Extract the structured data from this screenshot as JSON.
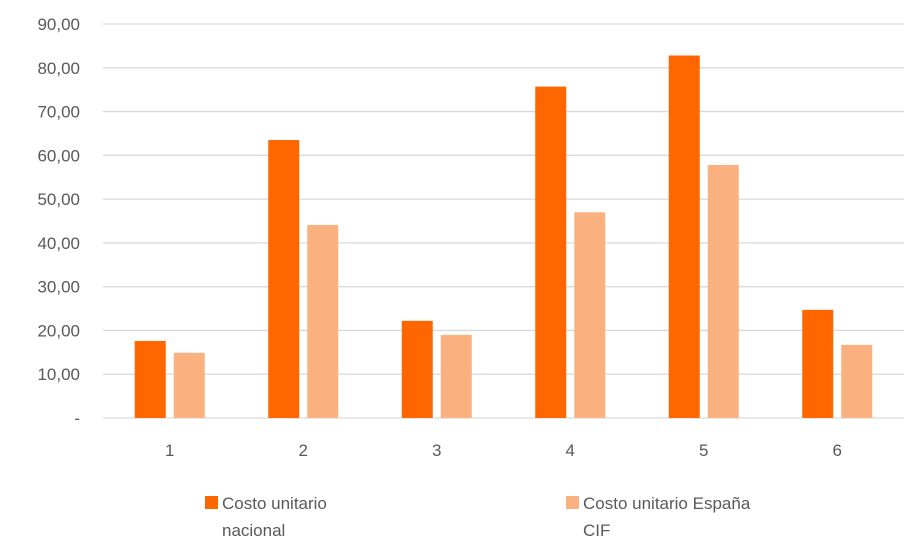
{
  "chart_data": {
    "type": "bar",
    "title": "",
    "xlabel": "",
    "ylabel": "",
    "categories": [
      "1",
      "2",
      "3",
      "4",
      "5",
      "6"
    ],
    "ylim": [
      0,
      90
    ],
    "y_ticks": [
      0,
      10,
      20,
      30,
      40,
      50,
      60,
      70,
      80,
      90
    ],
    "y_tick_labels": [
      "-",
      "10,00",
      "20,00",
      "30,00",
      "40,00",
      "50,00",
      "60,00",
      "70,00",
      "80,00",
      "90,00"
    ],
    "grid": true,
    "legend_position": "bottom",
    "series": [
      {
        "name": "Costo unitario nacional",
        "legend_lines": [
          "Costo unitario",
          "nacional"
        ],
        "color": "#ff6600",
        "values": [
          17.6,
          63.5,
          22.2,
          75.7,
          82.8,
          24.7
        ]
      },
      {
        "name": "Costo unitario España CIF",
        "legend_lines": [
          "Costo unitario España",
          "CIF"
        ],
        "color": "#fbb080",
        "values": [
          14.9,
          44.1,
          19.0,
          47.0,
          57.8,
          16.7
        ]
      }
    ]
  }
}
